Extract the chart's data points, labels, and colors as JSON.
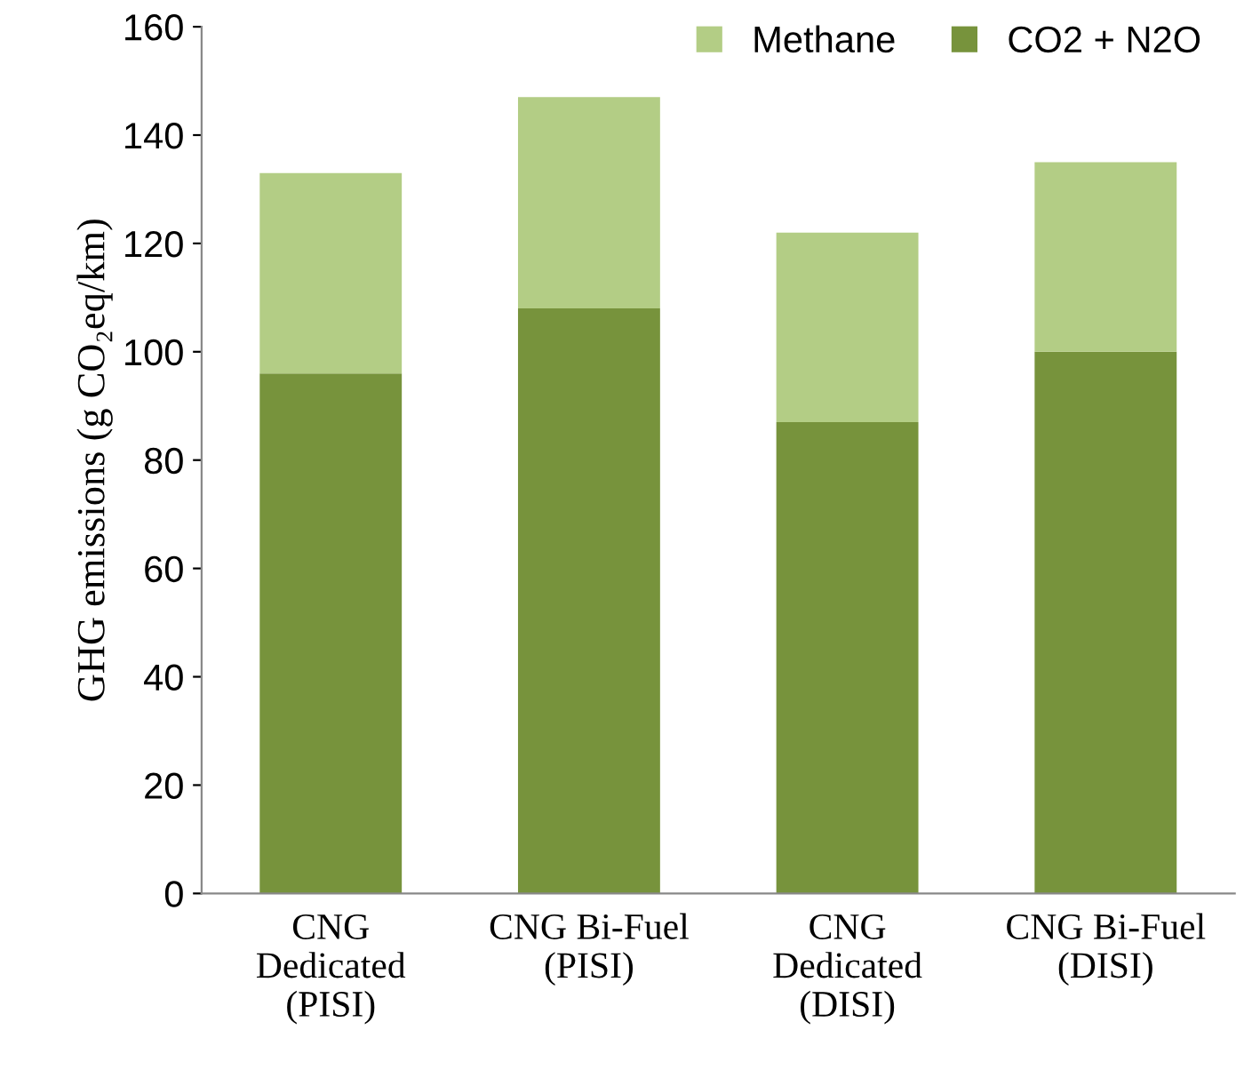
{
  "chart_data": {
    "type": "bar",
    "stacked": true,
    "ylabel": "GHG emissions (g CO₂eq/km)",
    "categories": [
      "CNG\nDedicated\n(PISI)",
      "CNG Bi-Fuel\n(PISI)",
      "CNG\nDedicated\n(DISI)",
      "CNG Bi-Fuel\n(DISI)"
    ],
    "series": [
      {
        "name": "CO2 + N2O",
        "color": "#77933c",
        "values": [
          96,
          108,
          87,
          100
        ]
      },
      {
        "name": "Methane",
        "color": "#b3cd85",
        "values": [
          37,
          39,
          35,
          35
        ]
      }
    ],
    "ylim": [
      0,
      160
    ],
    "yticks": [
      0,
      20,
      40,
      60,
      80,
      100,
      120,
      140,
      160
    ],
    "grid": false,
    "legend": "top right"
  }
}
